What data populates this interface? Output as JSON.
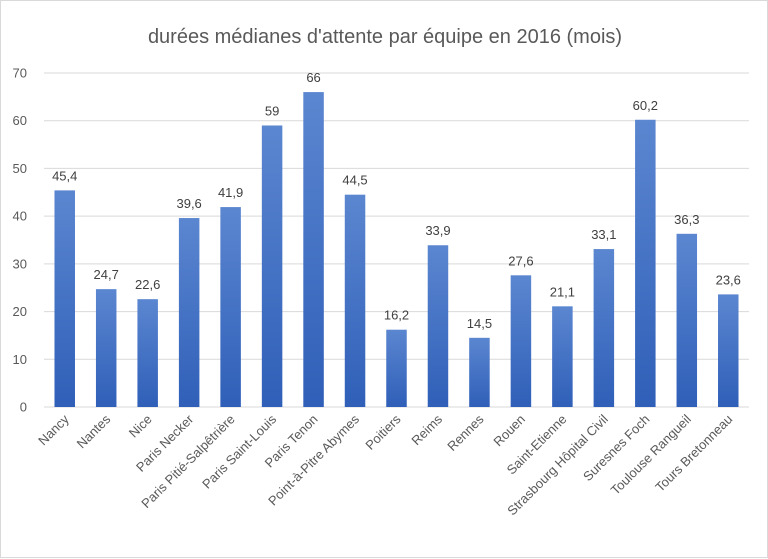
{
  "chart_data": {
    "type": "bar",
    "title": "durées médianes d'attente par équipe en 2016 (mois)",
    "categories": [
      "Nancy",
      "Nantes",
      "Nice",
      "Paris Necker",
      "Paris Pitié-Salpêtrière",
      "Paris Saint-Louis",
      "Paris Tenon",
      "Point-à-Pitre Abymes",
      "Poitiers",
      "Reims",
      "Rennes",
      "Rouen",
      "Saint-Etienne",
      "Strasbourg Hôpital Civil",
      "Suresnes Foch",
      "Toulouse Rangueil",
      "Tours Bretonneau"
    ],
    "values": [
      45.4,
      24.7,
      22.6,
      39.6,
      41.9,
      59,
      66,
      44.5,
      16.2,
      33.9,
      14.5,
      27.6,
      21.1,
      33.1,
      60.2,
      36.3,
      23.6
    ],
    "data_labels": [
      "45,4",
      "24,7",
      "22,6",
      "39,6",
      "41,9",
      "59",
      "66",
      "44,5",
      "16,2",
      "33,9",
      "14,5",
      "27,6",
      "21,1",
      "33,1",
      "60,2",
      "36,3",
      "23,6"
    ],
    "ylim": [
      0,
      70
    ],
    "yticks": [
      "0",
      "10",
      "20",
      "30",
      "40",
      "50",
      "60",
      "70"
    ],
    "xlabel": "",
    "ylabel": "",
    "grid": true,
    "legend": "none",
    "colors": {
      "bar_top": "#5b86d0",
      "bar_bottom": "#2f5fb8",
      "gridline": "#d9d9d9",
      "axis_text": "#595959"
    }
  }
}
